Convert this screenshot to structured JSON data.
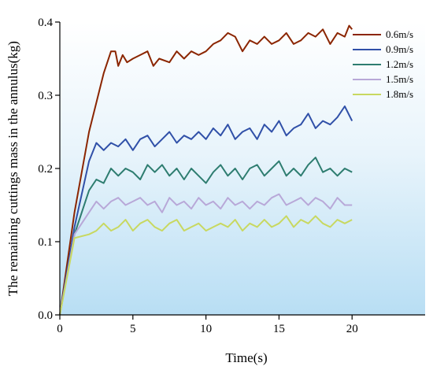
{
  "chart_data": {
    "type": "line",
    "xlabel": "Time(s)",
    "ylabel": "The remaining cuttings mass in the annulus(kg)",
    "xlim": [
      0,
      25
    ],
    "ylim": [
      0,
      0.4
    ],
    "xticks": [
      "0",
      "5",
      "10",
      "15",
      "20"
    ],
    "xtick_values": [
      0,
      5,
      10,
      15,
      20
    ],
    "yticks": [
      "0.0",
      "0.1",
      "0.2",
      "0.3",
      "0.4"
    ],
    "ytick_values": [
      0,
      0.1,
      0.2,
      0.3,
      0.4
    ],
    "grid": false,
    "legend_position": "top-right",
    "series": [
      {
        "name": "0.6m/s",
        "color": "#8B2500",
        "x": [
          0,
          1,
          2,
          3,
          3.5,
          3.8,
          4.0,
          4.3,
          4.6,
          5.0,
          5.5,
          6.0,
          6.4,
          6.8,
          7.5,
          8.0,
          8.5,
          9.0,
          9.5,
          10.0,
          10.5,
          11.0,
          11.5,
          12.0,
          12.5,
          13.0,
          13.5,
          14.0,
          14.5,
          15.0,
          15.5,
          16.0,
          16.5,
          17.0,
          17.5,
          18.0,
          18.5,
          19.0,
          19.5,
          19.8,
          20.0
        ],
        "values": [
          0,
          0.14,
          0.25,
          0.33,
          0.36,
          0.36,
          0.34,
          0.355,
          0.345,
          0.35,
          0.355,
          0.36,
          0.34,
          0.35,
          0.345,
          0.36,
          0.35,
          0.36,
          0.355,
          0.36,
          0.37,
          0.375,
          0.385,
          0.38,
          0.36,
          0.375,
          0.37,
          0.38,
          0.37,
          0.375,
          0.385,
          0.37,
          0.375,
          0.385,
          0.38,
          0.39,
          0.37,
          0.385,
          0.38,
          0.395,
          0.39
        ]
      },
      {
        "name": "0.9m/s",
        "color": "#3050A8",
        "x": [
          0,
          1,
          2,
          2.5,
          3.0,
          3.5,
          4.0,
          4.5,
          5.0,
          5.5,
          6.0,
          6.5,
          7.0,
          7.5,
          8.0,
          8.5,
          9.0,
          9.5,
          10.0,
          10.5,
          11.0,
          11.5,
          12.0,
          12.5,
          13.0,
          13.5,
          14.0,
          14.5,
          15.0,
          15.5,
          16.0,
          16.5,
          17.0,
          17.5,
          18.0,
          18.5,
          19.0,
          19.5,
          20.0
        ],
        "values": [
          0,
          0.12,
          0.21,
          0.235,
          0.225,
          0.235,
          0.23,
          0.24,
          0.225,
          0.24,
          0.245,
          0.23,
          0.24,
          0.25,
          0.235,
          0.245,
          0.24,
          0.25,
          0.24,
          0.255,
          0.245,
          0.26,
          0.24,
          0.25,
          0.255,
          0.24,
          0.26,
          0.25,
          0.265,
          0.245,
          0.255,
          0.26,
          0.275,
          0.255,
          0.265,
          0.26,
          0.27,
          0.285,
          0.265
        ]
      },
      {
        "name": "1.2m/s",
        "color": "#2E7D70",
        "x": [
          0,
          1,
          2,
          2.5,
          3.0,
          3.5,
          4.0,
          4.5,
          5.0,
          5.5,
          6.0,
          6.5,
          7.0,
          7.5,
          8.0,
          8.5,
          9.0,
          9.5,
          10.0,
          10.5,
          11.0,
          11.5,
          12.0,
          12.5,
          13.0,
          13.5,
          14.0,
          14.5,
          15.0,
          15.5,
          16.0,
          16.5,
          17.0,
          17.5,
          18.0,
          18.5,
          19.0,
          19.5,
          20.0
        ],
        "values": [
          0,
          0.11,
          0.17,
          0.185,
          0.18,
          0.2,
          0.19,
          0.2,
          0.195,
          0.185,
          0.205,
          0.195,
          0.205,
          0.19,
          0.2,
          0.185,
          0.2,
          0.19,
          0.18,
          0.195,
          0.205,
          0.19,
          0.2,
          0.185,
          0.2,
          0.205,
          0.19,
          0.2,
          0.21,
          0.19,
          0.2,
          0.19,
          0.205,
          0.215,
          0.195,
          0.2,
          0.19,
          0.2,
          0.195
        ]
      },
      {
        "name": "1.5m/s",
        "color": "#B8A8D8",
        "x": [
          0,
          1,
          2,
          2.5,
          3.0,
          3.5,
          4.0,
          4.5,
          5.0,
          5.5,
          6.0,
          6.5,
          7.0,
          7.5,
          8.0,
          8.5,
          9.0,
          9.5,
          10.0,
          10.5,
          11.0,
          11.5,
          12.0,
          12.5,
          13.0,
          13.5,
          14.0,
          14.5,
          15.0,
          15.5,
          16.0,
          16.5,
          17.0,
          17.5,
          18.0,
          18.5,
          19.0,
          19.5,
          20.0
        ],
        "values": [
          0,
          0.11,
          0.14,
          0.155,
          0.145,
          0.155,
          0.16,
          0.15,
          0.155,
          0.16,
          0.15,
          0.155,
          0.14,
          0.16,
          0.15,
          0.155,
          0.145,
          0.16,
          0.15,
          0.155,
          0.145,
          0.16,
          0.15,
          0.155,
          0.145,
          0.155,
          0.15,
          0.16,
          0.165,
          0.15,
          0.155,
          0.16,
          0.15,
          0.16,
          0.155,
          0.145,
          0.16,
          0.15,
          0.15
        ]
      },
      {
        "name": "1.8m/s",
        "color": "#C8D860",
        "x": [
          0,
          1,
          2,
          2.5,
          3.0,
          3.5,
          4.0,
          4.5,
          5.0,
          5.5,
          6.0,
          6.5,
          7.0,
          7.5,
          8.0,
          8.5,
          9.0,
          9.5,
          10.0,
          10.5,
          11.0,
          11.5,
          12.0,
          12.5,
          13.0,
          13.5,
          14.0,
          14.5,
          15.0,
          15.5,
          16.0,
          16.5,
          17.0,
          17.5,
          18.0,
          18.5,
          19.0,
          19.5,
          20.0
        ],
        "values": [
          0,
          0.105,
          0.11,
          0.115,
          0.125,
          0.115,
          0.12,
          0.13,
          0.115,
          0.125,
          0.13,
          0.12,
          0.115,
          0.125,
          0.13,
          0.115,
          0.12,
          0.125,
          0.115,
          0.12,
          0.125,
          0.12,
          0.13,
          0.115,
          0.125,
          0.12,
          0.13,
          0.12,
          0.125,
          0.135,
          0.12,
          0.13,
          0.125,
          0.135,
          0.125,
          0.12,
          0.13,
          0.125,
          0.13
        ]
      }
    ]
  }
}
